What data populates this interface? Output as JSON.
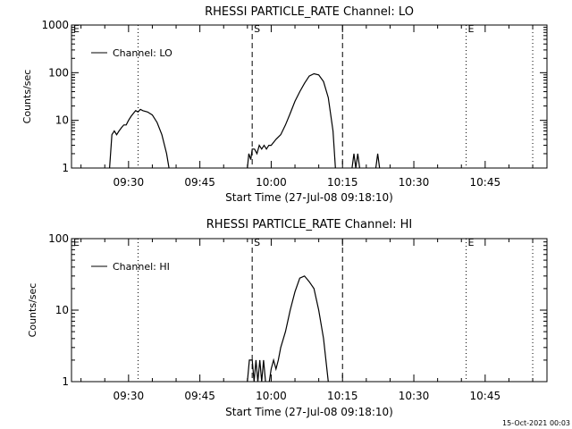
{
  "chart_data": [
    {
      "type": "line",
      "title": "RHESSI PARTICLE_RATE Channel: LO",
      "xlabel": "Start Time (27-Jul-08 09:18:10)",
      "ylabel": "Counts/sec",
      "yscale": "log",
      "ylim": [
        1,
        1000
      ],
      "xlim": [
        "09:18",
        "10:58"
      ],
      "xticks": [
        "09:30",
        "09:45",
        "10:00",
        "10:15",
        "10:30",
        "10:45"
      ],
      "yticks": [
        "1",
        "10",
        "100",
        "1000"
      ],
      "legend": {
        "placement": "top-left",
        "label": "Channel: LO"
      },
      "event_markers": [
        {
          "time": "09:18",
          "label": "E",
          "style": "none"
        },
        {
          "time": "09:56",
          "label": "S",
          "style": "dashed"
        },
        {
          "time": "10:41",
          "label": "E",
          "style": "dotted"
        }
      ],
      "vertical_lines": [
        {
          "time": "09:32",
          "style": "dotted"
        },
        {
          "time": "09:56",
          "style": "dashed"
        },
        {
          "time": "10:15",
          "style": "dashed"
        },
        {
          "time": "10:41",
          "style": "dotted"
        },
        {
          "time": "10:55",
          "style": "dotted"
        }
      ],
      "series": [
        {
          "name": "Channel: LO",
          "color": "#000000",
          "segments": [
            [
              [
                "09:26",
                1
              ],
              [
                "09:26.5",
                5
              ],
              [
                "09:27",
                6
              ],
              [
                "09:27.5",
                5
              ],
              [
                "09:28",
                6
              ],
              [
                "09:28.5",
                7
              ],
              [
                "09:29",
                8
              ],
              [
                "09:29.5",
                8
              ],
              [
                "09:30",
                10
              ],
              [
                "09:30.5",
                12
              ],
              [
                "09:31",
                14
              ],
              [
                "09:31.5",
                16
              ],
              [
                "09:32",
                15
              ],
              [
                "09:32.5",
                17
              ],
              [
                "09:33",
                16
              ],
              [
                "09:34",
                15
              ],
              [
                "09:35",
                13
              ],
              [
                "09:36",
                9
              ],
              [
                "09:37",
                5
              ],
              [
                "09:38",
                2
              ],
              [
                "09:38.5",
                1
              ]
            ],
            [
              [
                "09:55",
                1
              ],
              [
                "09:55.3",
                2
              ],
              [
                "09:55.7",
                1.5
              ],
              [
                "09:56",
                2.5
              ],
              [
                "09:56.5",
                2.5
              ],
              [
                "09:57",
                2
              ],
              [
                "09:57.5",
                3
              ],
              [
                "09:58",
                2.5
              ],
              [
                "09:58.5",
                3
              ],
              [
                "09:59",
                2.5
              ],
              [
                "09:59.5",
                3
              ],
              [
                "10:00",
                3
              ],
              [
                "10:01",
                4
              ],
              [
                "10:02",
                5
              ],
              [
                "10:03",
                8
              ],
              [
                "10:04",
                14
              ],
              [
                "10:05",
                25
              ],
              [
                "10:06",
                40
              ],
              [
                "10:07",
                60
              ],
              [
                "10:08",
                85
              ],
              [
                "10:09",
                95
              ],
              [
                "10:10",
                90
              ],
              [
                "10:11",
                65
              ],
              [
                "10:12",
                30
              ],
              [
                "10:13",
                6
              ],
              [
                "10:13.5",
                1
              ]
            ],
            [
              [
                "10:17",
                1
              ],
              [
                "10:17.4",
                2
              ],
              [
                "10:17.8",
                1
              ],
              [
                "10:18.2",
                2
              ],
              [
                "10:18.6",
                1
              ]
            ],
            [
              [
                "10:22",
                1
              ],
              [
                "10:22.4",
                2
              ],
              [
                "10:22.8",
                1
              ]
            ]
          ]
        }
      ]
    },
    {
      "type": "line",
      "title": "RHESSI PARTICLE_RATE Channel: HI",
      "xlabel": "Start Time (27-Jul-08 09:18:10)",
      "ylabel": "Counts/sec",
      "yscale": "log",
      "ylim": [
        1,
        100
      ],
      "xlim": [
        "09:18",
        "10:58"
      ],
      "xticks": [
        "09:30",
        "09:45",
        "10:00",
        "10:15",
        "10:30",
        "10:45"
      ],
      "yticks": [
        "1",
        "10",
        "100"
      ],
      "legend": {
        "placement": "top-left",
        "label": "Channel: HI"
      },
      "event_markers": [
        {
          "time": "09:18",
          "label": "E",
          "style": "none"
        },
        {
          "time": "09:56",
          "label": "S",
          "style": "dashed"
        },
        {
          "time": "10:41",
          "label": "E",
          "style": "dotted"
        }
      ],
      "vertical_lines": [
        {
          "time": "09:32",
          "style": "dotted"
        },
        {
          "time": "09:56",
          "style": "dashed"
        },
        {
          "time": "10:15",
          "style": "dashed"
        },
        {
          "time": "10:41",
          "style": "dotted"
        },
        {
          "time": "10:55",
          "style": "dotted"
        }
      ],
      "series": [
        {
          "name": "Channel: HI",
          "color": "#000000",
          "segments": [
            [
              [
                "09:55",
                1
              ],
              [
                "09:55.4",
                2
              ],
              [
                "09:56",
                2
              ],
              [
                "09:56.4",
                1
              ],
              [
                "09:56.8",
                2
              ],
              [
                "09:57.2",
                1
              ],
              [
                "09:57.6",
                2
              ],
              [
                "09:58",
                1
              ],
              [
                "09:58.4",
                2
              ],
              [
                "09:58.8",
                1
              ]
            ],
            [
              [
                "09:59.6",
                1
              ],
              [
                "10:00",
                1.5
              ],
              [
                "10:00.5",
                2
              ],
              [
                "10:01",
                1.5
              ],
              [
                "10:01.5",
                2
              ],
              [
                "10:02",
                3
              ],
              [
                "10:03",
                5
              ],
              [
                "10:04",
                10
              ],
              [
                "10:05",
                18
              ],
              [
                "10:06",
                28
              ],
              [
                "10:07",
                30
              ],
              [
                "10:08",
                25
              ],
              [
                "10:09",
                20
              ],
              [
                "10:10",
                10
              ],
              [
                "10:11",
                4
              ],
              [
                "10:12",
                1
              ]
            ]
          ]
        }
      ]
    }
  ],
  "footer": {
    "timestamp": "15-Oct-2021 00:03"
  }
}
